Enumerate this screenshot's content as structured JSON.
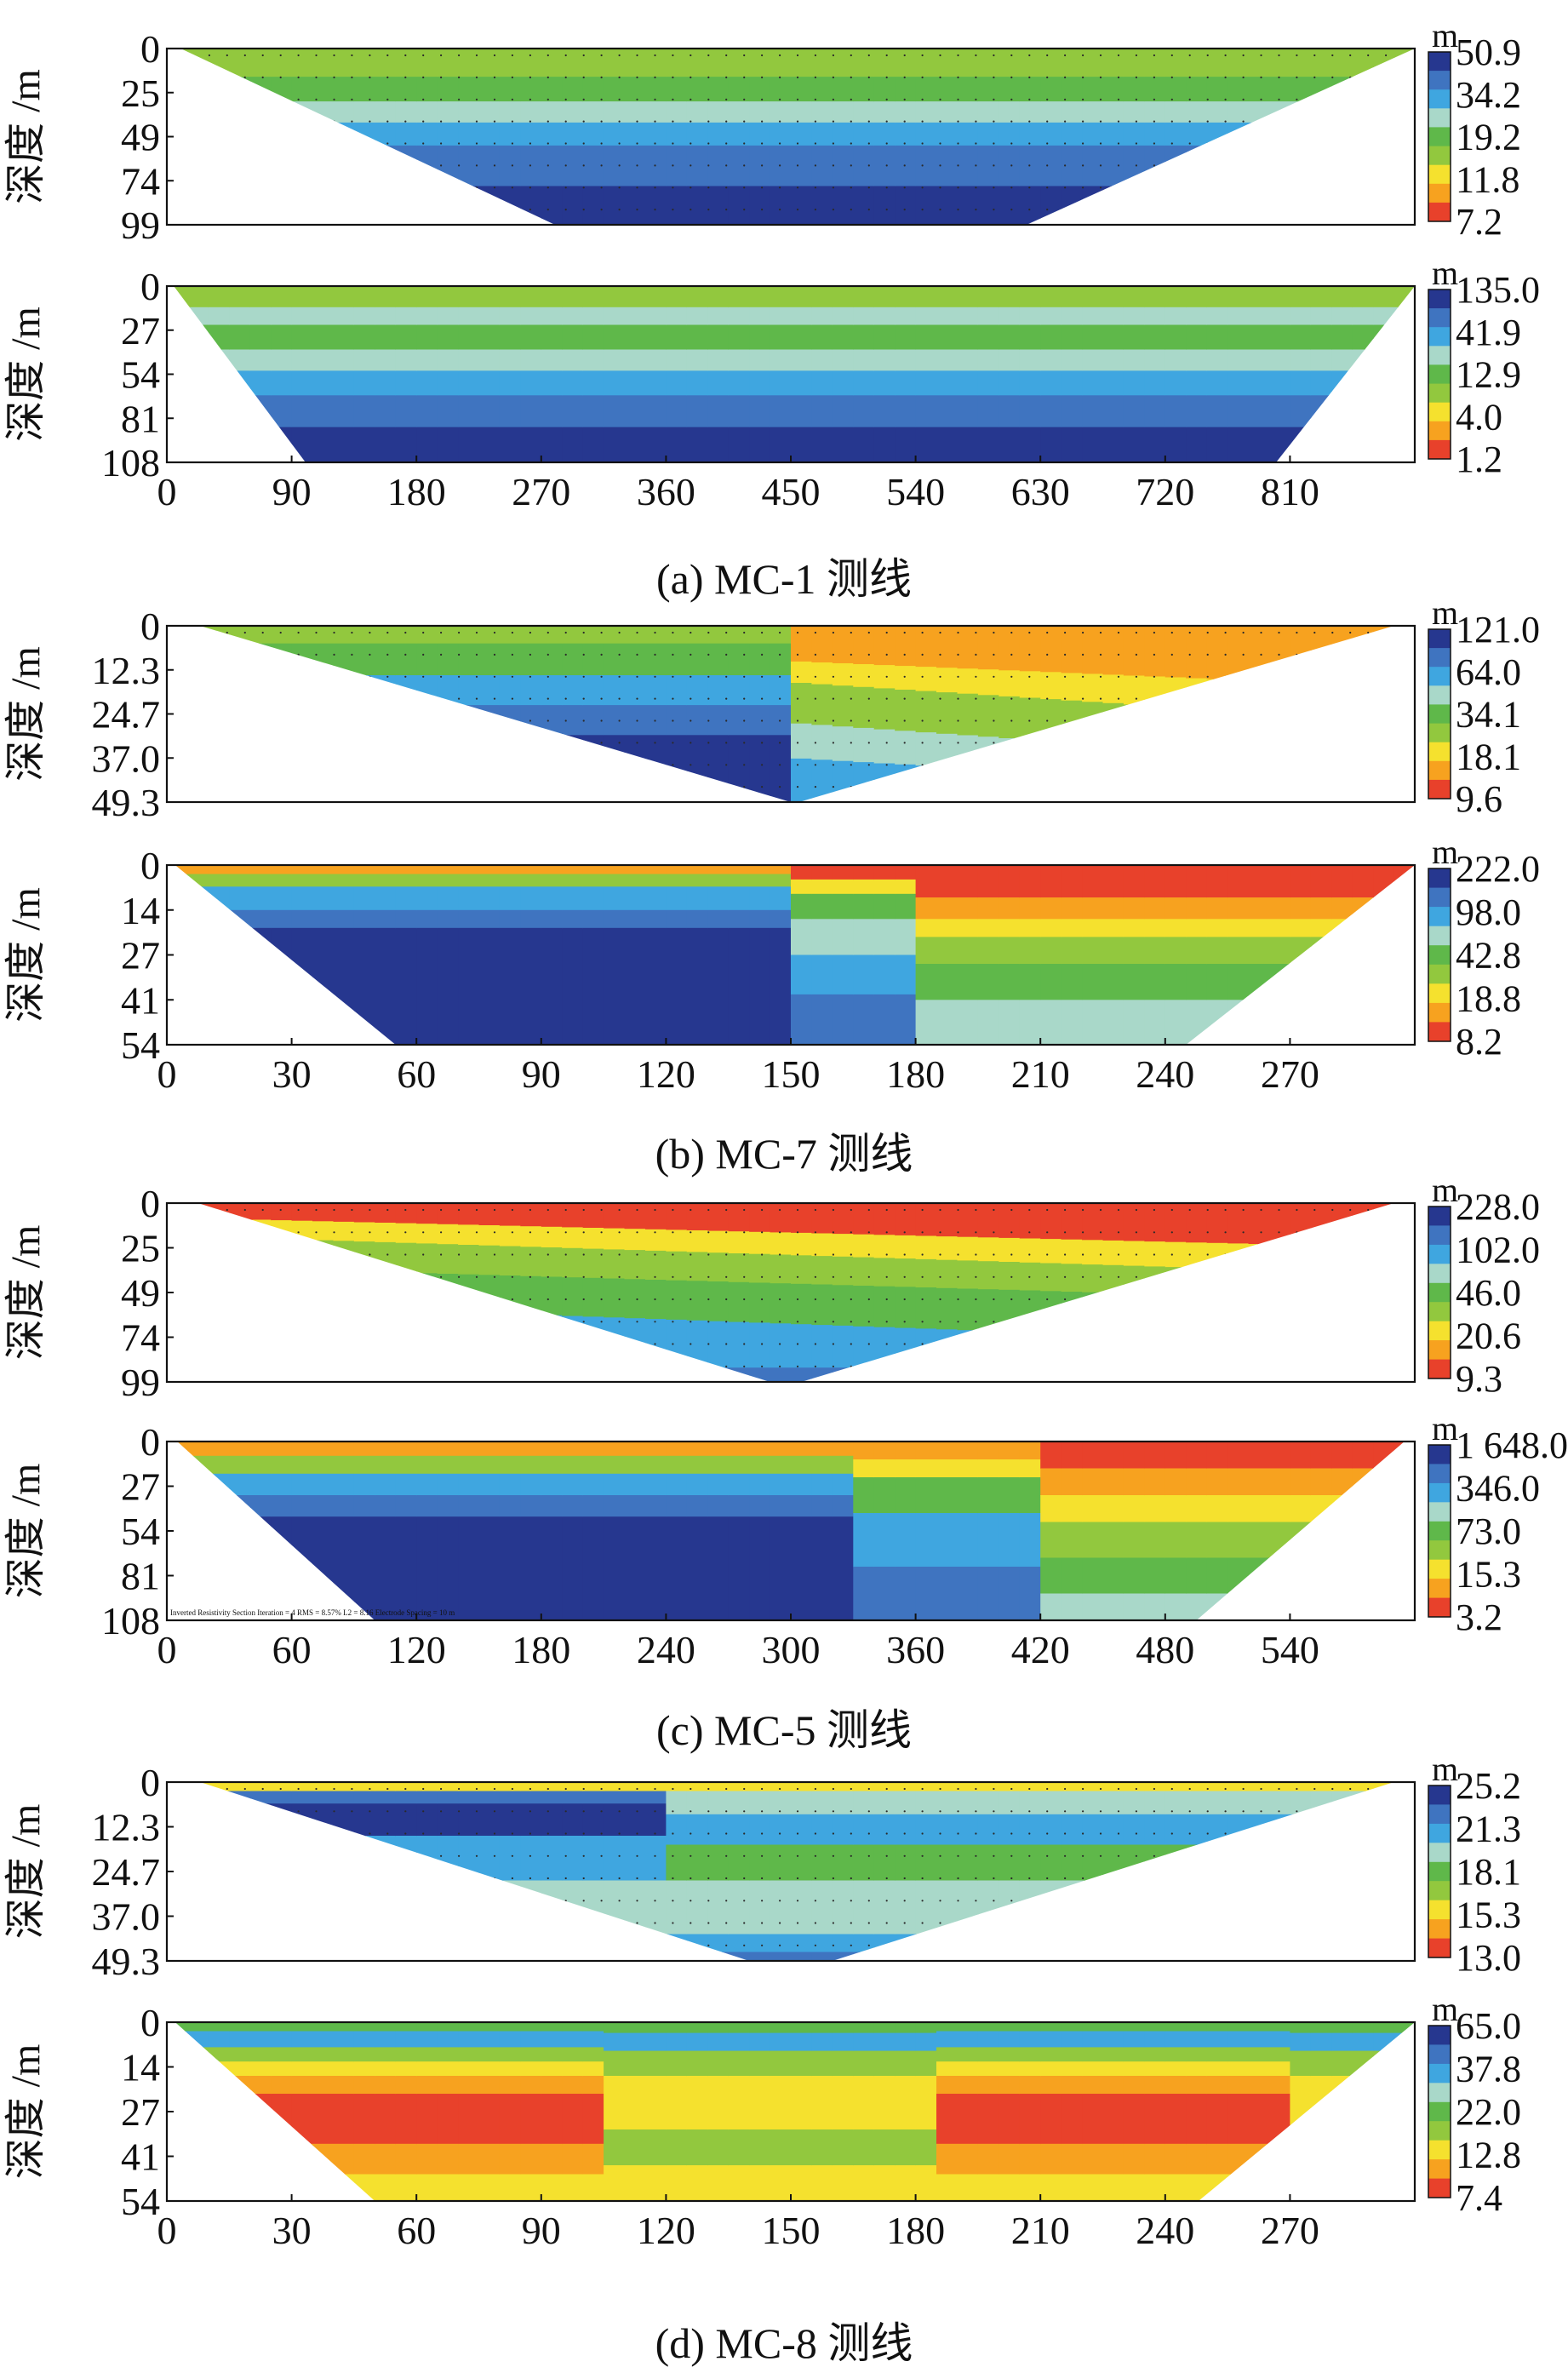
{
  "colors": {
    "scale": [
      "#e8412b",
      "#f7a21f",
      "#f5e12e",
      "#92c83e",
      "#5fb84a",
      "#a9d8c9",
      "#3fa6e0",
      "#3f74c0",
      "#26378f"
    ],
    "frame": "#111111",
    "dots": "#2a2a2a"
  },
  "units": {
    "depth_axis": "深度 /m",
    "scale_unit": "m"
  },
  "chart_data": [
    {
      "type": "heatmap",
      "id": "MC-1-a",
      "xlim": [
        0,
        900
      ],
      "dmax": 99,
      "ylabel": "深度 /m",
      "depth_ticks": [
        "0",
        "25",
        "49",
        "74",
        "99"
      ],
      "legend_unit": "m",
      "legend_values": [
        "50.9",
        "34.2",
        "19.2",
        "11.8",
        "7.2"
      ],
      "trap": {
        "top": [
          10,
          900
        ],
        "bottom": [
          280,
          620
        ]
      }
    },
    {
      "type": "heatmap",
      "id": "MC-1-b",
      "xlim": [
        0,
        900
      ],
      "dmax": 108,
      "ylabel": "深度 /m",
      "depth_ticks": [
        "0",
        "27",
        "54",
        "81",
        "108"
      ],
      "legend_unit": "m",
      "legend_values": [
        "135.0",
        "41.9",
        "12.9",
        "4.0",
        "1.2"
      ],
      "x_ticks": [
        "0",
        "90",
        "180",
        "270",
        "360",
        "450",
        "540",
        "630",
        "720",
        "810"
      ],
      "trap": {
        "top": [
          5,
          900
        ],
        "bottom": [
          100,
          800
        ]
      },
      "caption": "(a) MC-1 测线"
    },
    {
      "type": "heatmap",
      "id": "MC-7-a",
      "xlim": [
        0,
        300
      ],
      "dmax": 49.3,
      "ylabel": "深度 /m",
      "depth_ticks": [
        "0",
        "12.3",
        "24.7",
        "37.0",
        "49.3"
      ],
      "legend_unit": "m",
      "legend_values": [
        "121.0",
        "64.0",
        "34.1",
        "18.1",
        "9.6"
      ],
      "trap": {
        "top": [
          8,
          295
        ],
        "bottom": [
          150,
          152
        ]
      }
    },
    {
      "type": "heatmap",
      "id": "MC-7-b",
      "xlim": [
        0,
        300
      ],
      "dmax": 54,
      "ylabel": "深度 /m",
      "depth_ticks": [
        "0",
        "14",
        "27",
        "41",
        "54"
      ],
      "legend_unit": "m",
      "legend_values": [
        "222.0",
        "98.0",
        "42.8",
        "18.8",
        "8.2"
      ],
      "x_ticks": [
        "0",
        "30",
        "60",
        "90",
        "120",
        "150",
        "180",
        "210",
        "240",
        "270"
      ],
      "trap": {
        "top": [
          2,
          300
        ],
        "bottom": [
          55,
          245
        ]
      },
      "caption": "(b) MC-7 测线"
    },
    {
      "type": "heatmap",
      "id": "MC-5-a",
      "xlim": [
        0,
        600
      ],
      "dmax": 99,
      "ylabel": "深度 /m",
      "depth_ticks": [
        "0",
        "25",
        "49",
        "74",
        "99"
      ],
      "legend_unit": "m",
      "legend_values": [
        "228.0",
        "102.0",
        "46.0",
        "20.6",
        "9.3"
      ],
      "trap": {
        "top": [
          15,
          590
        ],
        "bottom": [
          290,
          305
        ]
      }
    },
    {
      "type": "heatmap",
      "id": "MC-5-b",
      "xlim": [
        0,
        600
      ],
      "dmax": 108,
      "ylabel": "深度 /m",
      "depth_ticks": [
        "0",
        "27",
        "54",
        "81",
        "108"
      ],
      "legend_unit": "m",
      "legend_values": [
        "1 648.0",
        "346.0",
        "73.0",
        "15.3",
        "3.2"
      ],
      "x_ticks": [
        "0",
        "60",
        "120",
        "180",
        "240",
        "300",
        "360",
        "420",
        "480",
        "540"
      ],
      "trap": {
        "top": [
          5,
          595
        ],
        "bottom": [
          100,
          495
        ]
      },
      "footnote": "Inverted Resistivity Section    Iteration = 4    RMS = 8.57%    L2 = 8.16    Electrode Spacing = 10 m",
      "caption": "(c) MC-5 测线"
    },
    {
      "type": "heatmap",
      "id": "MC-8-a",
      "xlim": [
        0,
        300
      ],
      "dmax": 49.3,
      "ylabel": "深度 /m",
      "depth_ticks": [
        "0",
        "12.3",
        "24.7",
        "37.0",
        "49.3"
      ],
      "legend_unit": "m",
      "legend_values": [
        "25.2",
        "21.3",
        "18.1",
        "15.3",
        "13.0"
      ],
      "trap": {
        "top": [
          8,
          295
        ],
        "bottom": [
          140,
          160
        ]
      }
    },
    {
      "type": "heatmap",
      "id": "MC-8-b",
      "xlim": [
        0,
        300
      ],
      "dmax": 54,
      "ylabel": "深度 /m",
      "depth_ticks": [
        "0",
        "14",
        "27",
        "41",
        "54"
      ],
      "legend_unit": "m",
      "legend_values": [
        "65.0",
        "37.8",
        "22.0",
        "12.8",
        "7.4"
      ],
      "x_ticks": [
        "0",
        "30",
        "60",
        "90",
        "120",
        "150",
        "180",
        "210",
        "240",
        "270"
      ],
      "trap": {
        "top": [
          2,
          300
        ],
        "bottom": [
          50,
          248
        ]
      },
      "caption": "(d) MC-8 测线"
    }
  ]
}
